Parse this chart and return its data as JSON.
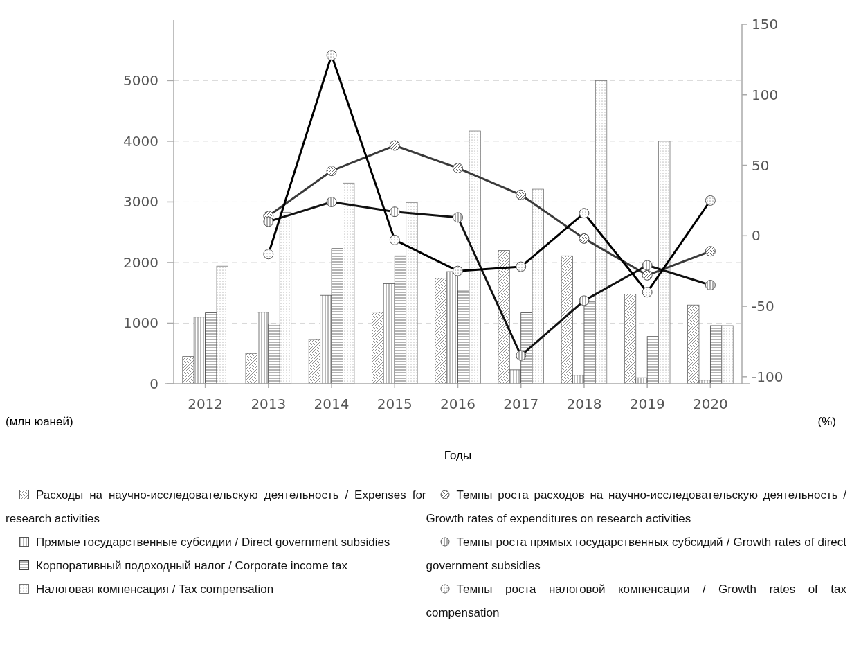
{
  "chart_data": {
    "type": "bar",
    "xlabel": "Годы",
    "ylabel": "(млн юаней)",
    "y2label": "(%)",
    "categories": [
      "2012",
      "2013",
      "2014",
      "2015",
      "2016",
      "2017",
      "2018",
      "2019",
      "2020"
    ],
    "series": [
      {
        "name": "Расходы на научно-исследовательскую деятельность / Expenses for research activities",
        "color": "#666666",
        "values": [
          450,
          500,
          730,
          1180,
          1740,
          2200,
          2110,
          1480,
          1300
        ]
      },
      {
        "name": "Прямые государственные субсидии / Direct government subsidies",
        "color": "#555555",
        "values": [
          1100,
          1180,
          1460,
          1650,
          1850,
          230,
          140,
          100,
          60
        ]
      },
      {
        "name": "Корпоративный подоходный налог / Corporate income tax",
        "color": "#444444",
        "values": [
          1170,
          990,
          2230,
          2110,
          1530,
          1170,
          1350,
          780,
          960
        ]
      },
      {
        "name": "Налоговая компенсация / Tax compensation",
        "color": "#777777",
        "values": [
          1940,
          2830,
          3310,
          2990,
          4170,
          3210,
          5000,
          4000,
          960
        ]
      },
      {
        "name": "Темпы роста расходов на научно-исследовательскую деятельность / Growth rates of expenditures on research activities",
        "type": "line",
        "axis": "y2",
        "color": "#3a3a3a",
        "values": [
          null,
          14,
          46,
          64,
          48,
          29,
          -2,
          -28,
          -11
        ]
      },
      {
        "name": "Темпы роста прямых государственных субсидий / Growth rates of direct government subsidies",
        "type": "line",
        "axis": "y2",
        "color": "#111111",
        "values": [
          null,
          10,
          24,
          17,
          13,
          -85,
          -46,
          -21,
          -35
        ]
      },
      {
        "name": "Темпы роста налоговой компенсации / Growth rates of tax compensation",
        "type": "line",
        "axis": "y2",
        "color": "#000000",
        "values": [
          null,
          -13,
          128,
          -3,
          -25,
          -22,
          16,
          -40,
          25
        ]
      }
    ],
    "ylim": [
      0,
      5930
    ],
    "yticks": [
      0,
      1000,
      2000,
      3000,
      4000,
      5000
    ],
    "y2lim": [
      -105,
      150
    ],
    "y2ticks": [
      -100,
      -50,
      0,
      50,
      100,
      150
    ],
    "grid": "y",
    "legend": "bottom",
    "marker": "circle"
  }
}
